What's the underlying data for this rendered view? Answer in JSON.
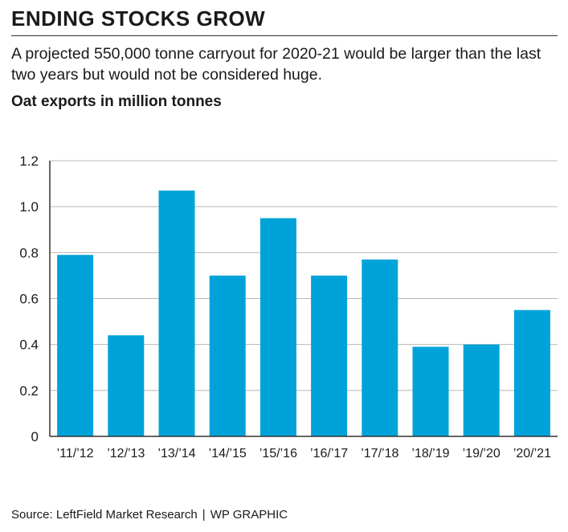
{
  "header": {
    "title": "ENDING STOCKS GROW",
    "description": "A projected 550,000 tonne carryout for 2020-21 would be larger than the last two years but would not be considered huge.",
    "subtitle": "Oat exports in million tonnes"
  },
  "footer": {
    "source": "Source: LeftField Market Research",
    "separator": "|",
    "credit": "WP GRAPHIC"
  },
  "colors": {
    "bar": "#00a3d9",
    "grid": "#b8b8b8",
    "axis": "#333333",
    "text": "#1a1a1a"
  },
  "chart_data": {
    "type": "bar",
    "categories": [
      "’11/’12",
      "’12/’13",
      "’13/’14",
      "’14/’15",
      "’15/’16",
      "’16/’17",
      "’17/’18",
      "’18/’19",
      "’19/’20",
      "’20/’21"
    ],
    "values": [
      0.79,
      0.44,
      1.07,
      0.7,
      0.95,
      0.7,
      0.77,
      0.39,
      0.4,
      0.55
    ],
    "yticks": [
      0,
      0.2,
      0.4,
      0.6,
      0.8,
      1.0,
      1.2
    ],
    "ytick_labels": [
      "0",
      "0.2",
      "0.4",
      "0.6",
      "0.8",
      "1.0",
      "1.2"
    ],
    "ylim": [
      0,
      1.2
    ],
    "grid": true,
    "xlabel": "",
    "ylabel": ""
  }
}
